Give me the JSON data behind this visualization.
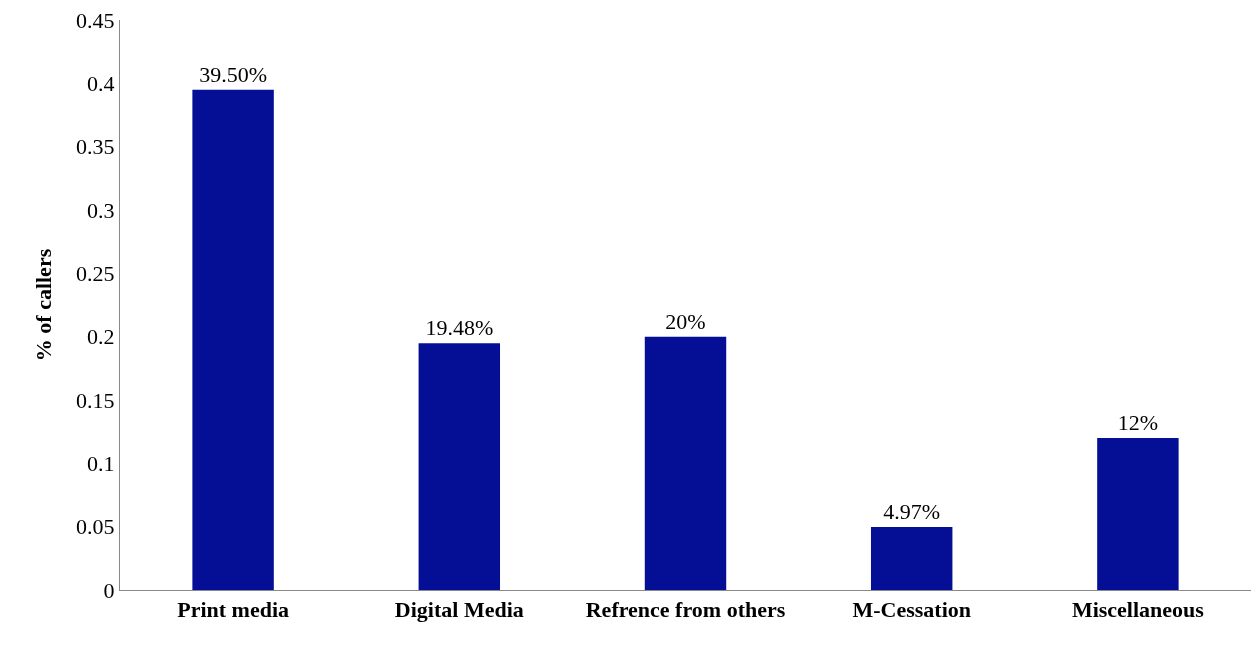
{
  "chart_data": {
    "type": "bar",
    "ylabel": "% of callers",
    "categories": [
      "Print media",
      "Digital Media",
      "Refrence from others",
      "M-Cessation",
      "Miscellaneous"
    ],
    "values": [
      0.395,
      0.1948,
      0.2,
      0.0497,
      0.12
    ],
    "value_labels": [
      "39.50%",
      "19.48%",
      "20%",
      "4.97%",
      "12%"
    ],
    "color": "#050f96",
    "ylim": [
      0,
      0.45
    ],
    "yticks": [
      0,
      0.05,
      0.1,
      0.15,
      0.2,
      0.25,
      0.3,
      0.35,
      0.4,
      0.45
    ],
    "grid": false
  }
}
